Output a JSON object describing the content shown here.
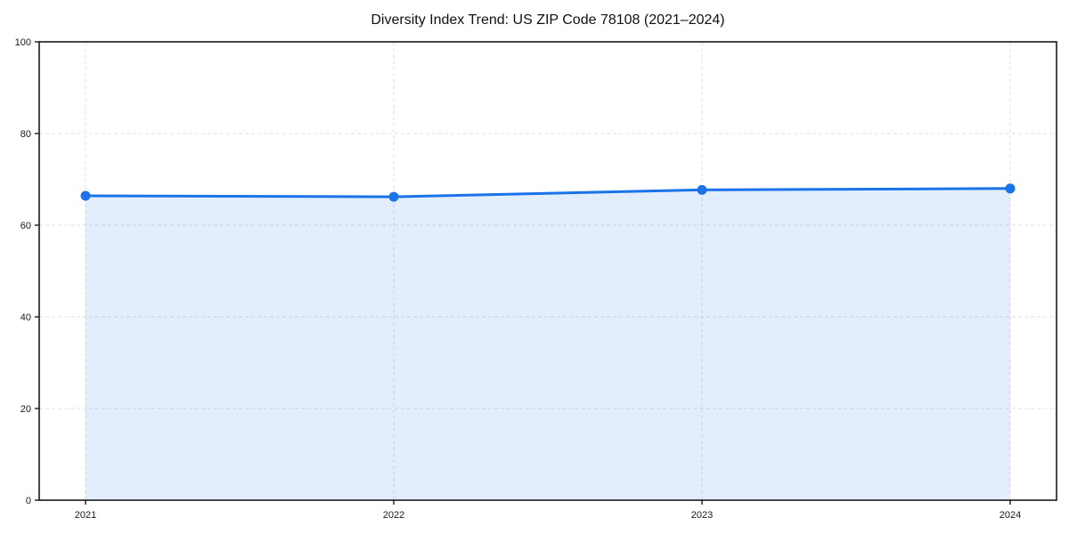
{
  "chart": {
    "title": "Diversity Index Trend: US ZIP Code 78108 (2021–2024)"
  },
  "chart_data": {
    "type": "area",
    "title": "Diversity Index Trend: US ZIP Code 78108 (2021–2024)",
    "categories": [
      "2021",
      "2022",
      "2023",
      "2024"
    ],
    "series": [
      {
        "name": "Diversity Index",
        "values": [
          66.4,
          66.2,
          67.7,
          68.0
        ]
      }
    ],
    "xlabel": "",
    "ylabel": "",
    "ylim": [
      0,
      100
    ],
    "yticks": [
      0,
      20,
      40,
      60,
      80,
      100
    ],
    "grid": "dashed horizontal and vertical",
    "legend": "none",
    "line_color": "#1a73e8",
    "fill_color": "rgba(26,115,232,0.12)",
    "marker": "circle",
    "frame": "full box",
    "spine_color": "#1a1a1a",
    "grid_color": "#e0e0e0",
    "tick_label_color": "#1a1a1a"
  }
}
